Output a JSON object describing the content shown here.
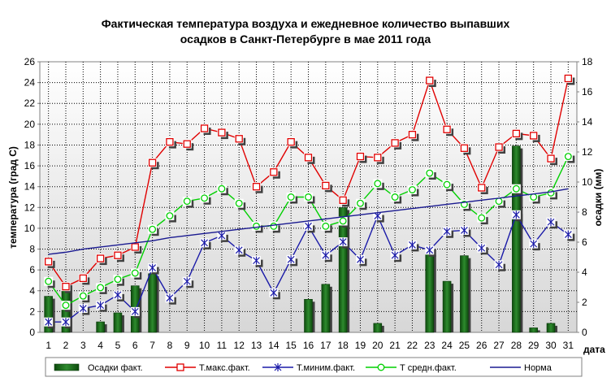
{
  "chart_data": {
    "type": "bar+line",
    "title_line1": "Фактическая температура воздуха и ежедневное количество выпавших",
    "title_line2": "осадков в Санкт-Петербурге в мае 2011 года",
    "ylabel_left": "температура (град С)",
    "ylabel_right": "осадки (мм)",
    "xlabel": "дата",
    "ylim_left": [
      0,
      26
    ],
    "ylim_right": [
      0,
      18
    ],
    "y_ticks_left": [
      "0",
      "2",
      "4",
      "6",
      "8",
      "10",
      "12",
      "14",
      "16",
      "18",
      "20",
      "22",
      "24",
      "26"
    ],
    "y_ticks_right": [
      "0",
      "2",
      "4",
      "6",
      "8",
      "10",
      "12",
      "14",
      "16",
      "18"
    ],
    "categories": [
      "1",
      "2",
      "3",
      "4",
      "5",
      "6",
      "7",
      "8",
      "9",
      "10",
      "11",
      "12",
      "13",
      "14",
      "15",
      "16",
      "17",
      "18",
      "19",
      "20",
      "21",
      "22",
      "23",
      "24",
      "25",
      "26",
      "27",
      "28",
      "29",
      "30",
      "31"
    ],
    "grid": true,
    "legend_position": "bottom",
    "series": [
      {
        "name": "Осадки факт.",
        "kind": "bar",
        "axis": "right",
        "color": "#1e6b1e",
        "values": [
          2.4,
          3.3,
          0,
          0.7,
          1.3,
          3.1,
          3.9,
          0,
          0,
          0,
          0,
          0,
          0,
          0,
          0,
          2.2,
          3.2,
          8.3,
          0,
          0.6,
          0,
          0,
          5.3,
          3.4,
          5.1,
          0,
          0,
          12.4,
          0.3,
          0.6,
          0
        ]
      },
      {
        "name": "Т.макс.факт.",
        "kind": "line",
        "axis": "left",
        "color": "#e00000",
        "marker": "square",
        "values": [
          6.8,
          4.4,
          5.2,
          7.1,
          7.4,
          8.2,
          16.3,
          18.3,
          18.1,
          19.6,
          19.2,
          18.6,
          14.0,
          15.4,
          18.3,
          16.8,
          14.1,
          12.7,
          16.9,
          16.8,
          18.2,
          19.0,
          24.2,
          19.5,
          17.7,
          13.9,
          17.8,
          19.1,
          18.9,
          16.7,
          24.4
        ]
      },
      {
        "name": "Т.миним.факт.",
        "kind": "line",
        "axis": "left",
        "color": "#1a1aa8",
        "marker": "asterisk",
        "values": [
          1.0,
          1.0,
          2.3,
          2.6,
          3.6,
          2.0,
          6.2,
          3.3,
          4.9,
          8.6,
          9.3,
          7.9,
          6.9,
          3.8,
          7.0,
          10.2,
          7.4,
          8.7,
          7.0,
          11.2,
          7.4,
          8.4,
          7.9,
          9.7,
          9.8,
          8.1,
          6.5,
          11.3,
          8.5,
          10.6,
          9.4
        ]
      },
      {
        "name": "Т средн.факт.",
        "kind": "line",
        "axis": "left",
        "color": "#00d000",
        "marker": "circle",
        "values": [
          4.9,
          2.6,
          3.5,
          4.3,
          5.1,
          5.7,
          9.9,
          11.2,
          12.6,
          12.9,
          13.8,
          12.4,
          10.2,
          10.2,
          13.0,
          13.0,
          10.2,
          10.7,
          12.4,
          14.3,
          13.0,
          13.7,
          15.3,
          14.2,
          12.3,
          11.0,
          12.6,
          13.8,
          13.0,
          13.4,
          16.9
        ]
      },
      {
        "name": "Норма",
        "kind": "line",
        "axis": "left",
        "color": "#1a1a90",
        "marker": "none",
        "values": [
          7.5,
          7.7,
          8.0,
          8.2,
          8.4,
          8.6,
          8.8,
          9.1,
          9.3,
          9.5,
          9.7,
          9.9,
          10.1,
          10.3,
          10.5,
          10.7,
          10.9,
          11.1,
          11.3,
          11.5,
          11.7,
          11.9,
          12.1,
          12.3,
          12.5,
          12.7,
          12.9,
          13.1,
          13.3,
          13.5,
          13.8
        ]
      }
    ]
  }
}
